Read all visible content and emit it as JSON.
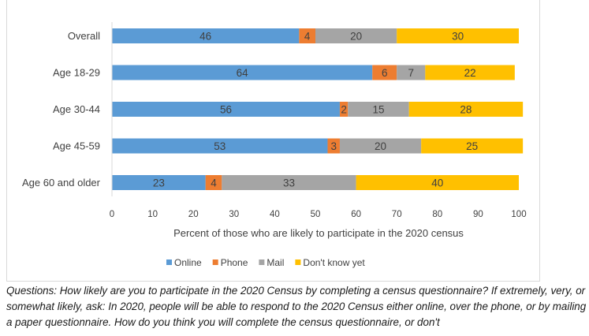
{
  "chart_data": {
    "type": "bar",
    "orientation": "horizontal",
    "stacked": true,
    "categories": [
      "Overall",
      "Age 18-29",
      "Age 30-44",
      "Age 45-59",
      "Age 60 and older"
    ],
    "series": [
      {
        "name": "Online",
        "color": "#5b9bd5",
        "values": [
          46,
          64,
          56,
          53,
          23
        ]
      },
      {
        "name": "Phone",
        "color": "#ed7d31",
        "values": [
          4,
          6,
          2,
          3,
          4
        ]
      },
      {
        "name": "Mail",
        "color": "#a5a5a5",
        "values": [
          20,
          7,
          15,
          20,
          33
        ]
      },
      {
        "name": "Don't know yet",
        "color": "#ffc000",
        "values": [
          30,
          22,
          28,
          25,
          40
        ]
      }
    ],
    "xlabel": "Percent of those who are likely to participate in the 2020 census",
    "xlim": [
      0,
      100
    ],
    "xticks": [
      0,
      10,
      20,
      30,
      40,
      50,
      60,
      70,
      80,
      90,
      100
    ],
    "legend_position": "bottom",
    "grid": false
  },
  "caption": "Questions: How likely are you to participate in the 2020 Census by completing a census questionnaire? If extremely, very, or somewhat likely, ask: In 2020, people will be able to respond to the 2020 Census either online, over the phone, or by mailing a paper questionnaire. How do you think you will complete the census questionnaire, or don't"
}
